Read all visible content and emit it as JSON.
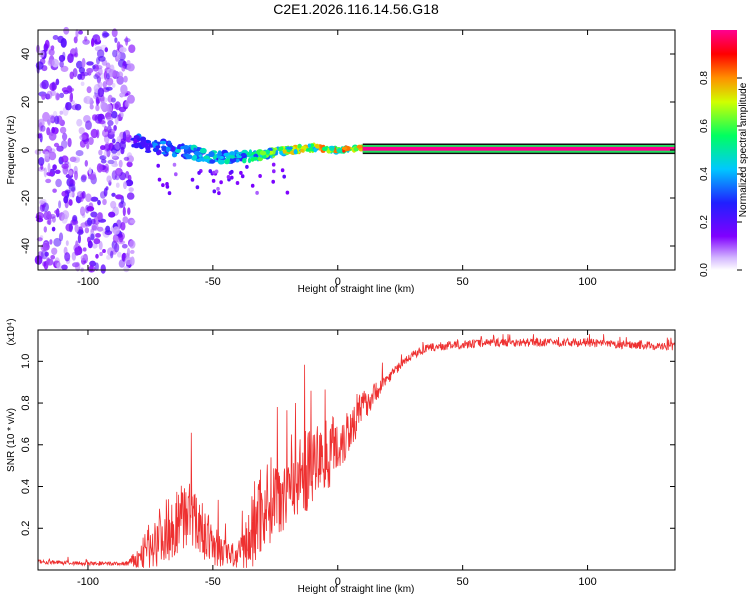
{
  "title": "C2E1.2026.116.14.56.G18",
  "colors": {
    "line": "#ee3030",
    "background": "#ffffff",
    "colormap": [
      "#ffffff",
      "#b080ff",
      "#8000ff",
      "#3030ff",
      "#00c0ff",
      "#00ff80",
      "#ffff00",
      "#ff8000",
      "#ff0000",
      "#ff0080"
    ]
  },
  "chart_data": [
    {
      "type": "heatmap",
      "name": "spectrogram",
      "title": "C2E1.2026.116.14.56.G18",
      "xlabel": "Height of straight line (km)",
      "ylabel": "Frequency (Hz)",
      "xlim": [
        -120,
        135
      ],
      "ylim": [
        -50,
        50
      ],
      "x_ticks": [
        -100,
        -50,
        0,
        50,
        100
      ],
      "x_tick_labels": [
        "-100",
        "-50",
        "0",
        "50",
        "100"
      ],
      "y_ticks": [
        -40,
        -20,
        0,
        20,
        40
      ],
      "y_tick_labels": [
        "-40",
        "-20",
        "0",
        "20",
        "40"
      ],
      "colorbar": {
        "label": "Normalized spectral amplitude",
        "range": [
          0.0,
          1.0
        ],
        "ticks": [
          0.0,
          0.2,
          0.4,
          0.6,
          0.8
        ],
        "tick_labels": [
          "0.0",
          "0.2",
          "0.4",
          "0.6",
          "0.8"
        ]
      },
      "regions": [
        {
          "description": "noise",
          "x_range": [
            -120,
            -82
          ],
          "freq_range": [
            -50,
            50
          ],
          "amplitude": 0.15
        },
        {
          "description": "signal ridge",
          "x": [
            -82,
            -70,
            -60,
            -50,
            -40,
            -30,
            -20,
            -10,
            0,
            10
          ],
          "freq": [
            3,
            1,
            -1,
            -3,
            -3,
            -2,
            0,
            1,
            0,
            1
          ],
          "amplitude": [
            0.3,
            0.4,
            0.45,
            0.45,
            0.5,
            0.6,
            0.7,
            0.75,
            0.8,
            0.85
          ]
        },
        {
          "description": "steady tone",
          "x_range": [
            10,
            135
          ],
          "freq": 0.5,
          "amplitude": 1.0
        }
      ]
    },
    {
      "type": "line",
      "name": "snr",
      "xlabel": "Height of straight line (km)",
      "ylabel": "SNR (10 * v/v)",
      "y_multiplier": "(x10⁴)",
      "xlim": [
        -120,
        135
      ],
      "ylim": [
        0.0,
        1.15
      ],
      "x_ticks": [
        -100,
        -50,
        0,
        50,
        100
      ],
      "x_tick_labels": [
        "-100",
        "-50",
        "0",
        "50",
        "100"
      ],
      "y_ticks": [
        0.2,
        0.4,
        0.6,
        0.8,
        1.0
      ],
      "y_tick_labels": [
        "0.2",
        "0.4",
        "0.6",
        "0.8",
        "1.0"
      ],
      "x": [
        -120,
        -100,
        -85,
        -80,
        -75,
        -70,
        -65,
        -60,
        -55,
        -50,
        -45,
        -40,
        -35,
        -32,
        -30,
        -25,
        -20,
        -15,
        -10,
        -5,
        0,
        5,
        10,
        15,
        20,
        25,
        30,
        35,
        40,
        50,
        60,
        70,
        80,
        90,
        100,
        110,
        120,
        130,
        135
      ],
      "y": [
        0.04,
        0.03,
        0.03,
        0.05,
        0.12,
        0.18,
        0.22,
        0.28,
        0.2,
        0.12,
        0.08,
        0.06,
        0.15,
        0.28,
        0.3,
        0.36,
        0.4,
        0.45,
        0.5,
        0.55,
        0.6,
        0.68,
        0.78,
        0.85,
        0.92,
        0.98,
        1.03,
        1.06,
        1.07,
        1.08,
        1.09,
        1.09,
        1.09,
        1.09,
        1.09,
        1.08,
        1.08,
        1.07,
        1.07
      ],
      "noise_amplitude": [
        0.01,
        0.01,
        0.01,
        0.05,
        0.12,
        0.15,
        0.16,
        0.16,
        0.14,
        0.1,
        0.08,
        0.06,
        0.18,
        0.25,
        0.22,
        0.2,
        0.2,
        0.2,
        0.2,
        0.18,
        0.16,
        0.12,
        0.08,
        0.05,
        0.03,
        0.02,
        0.02,
        0.02,
        0.02,
        0.02,
        0.02,
        0.02,
        0.02,
        0.02,
        0.02,
        0.02,
        0.02,
        0.02,
        0.02
      ]
    }
  ]
}
